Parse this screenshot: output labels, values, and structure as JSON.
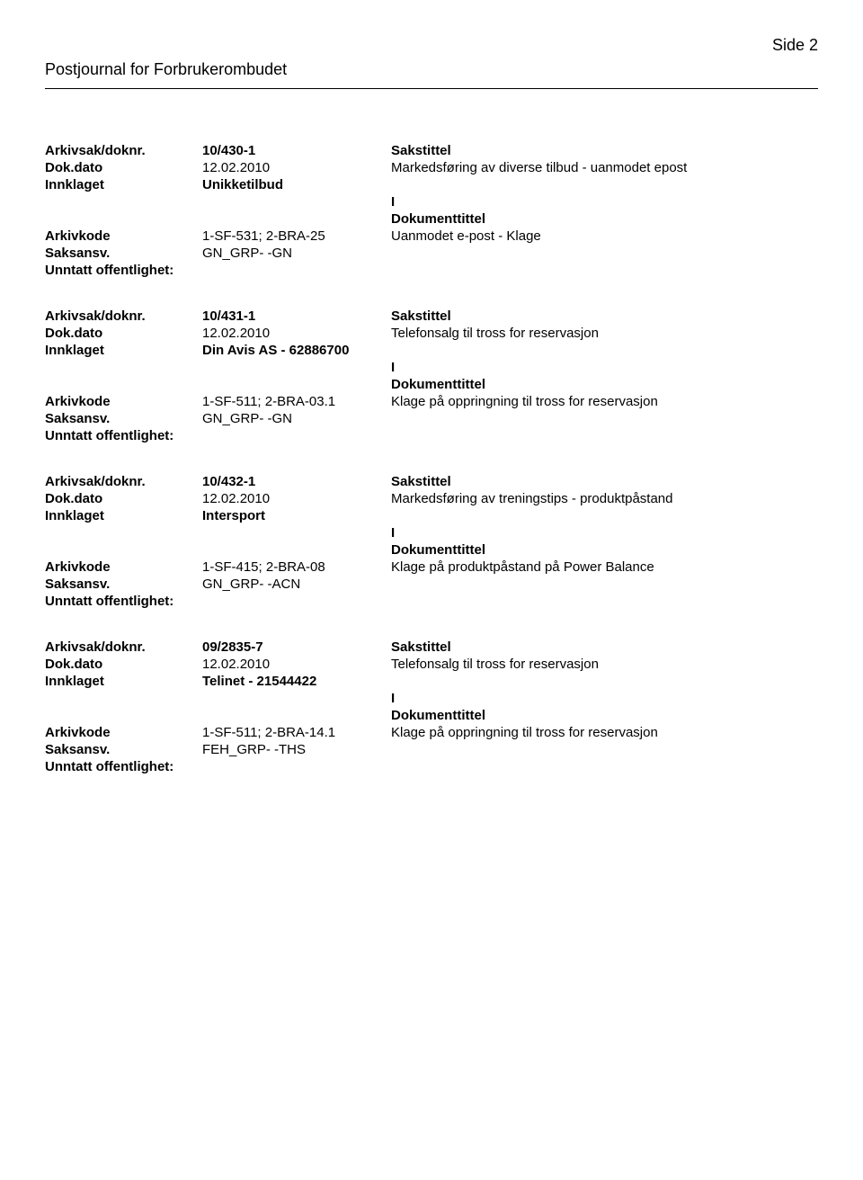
{
  "header": {
    "title": "Postjournal for Forbrukerombudet",
    "page": "Side 2"
  },
  "labels": {
    "arkivsak": "Arkivsak/doknr.",
    "dokdato": "Dok.dato",
    "innklaget": "Innklaget",
    "arkivkode": "Arkivkode",
    "saksansv": "Saksansv.",
    "unntatt": "Unntatt offentlighet:",
    "sakstittel": "Sakstittel",
    "doktittel": "Dokumenttittel"
  },
  "entries": [
    {
      "doknr": "10/430-1",
      "dato": "12.02.2010",
      "innklaget": "Unikketilbud",
      "sakstittel": "Markedsføring av diverse tilbud - uanmodet epost",
      "iou": "I",
      "arkivkode": "1-SF-531; 2-BRA-25",
      "doktittel": "Uanmodet e-post - Klage",
      "saksansv": "GN_GRP- -GN"
    },
    {
      "doknr": "10/431-1",
      "dato": "12.02.2010",
      "innklaget": "Din Avis AS - 62886700",
      "sakstittel": "Telefonsalg til tross for reservasjon",
      "iou": "I",
      "arkivkode": "1-SF-511; 2-BRA-03.1",
      "doktittel": "Klage på oppringning til tross for reservasjon",
      "saksansv": "GN_GRP- -GN"
    },
    {
      "doknr": "10/432-1",
      "dato": "12.02.2010",
      "innklaget": "Intersport",
      "sakstittel": "Markedsføring av treningstips - produktpåstand",
      "iou": "I",
      "arkivkode": "1-SF-415; 2-BRA-08",
      "doktittel": "Klage på produktpåstand på Power Balance",
      "saksansv": "GN_GRP- -ACN"
    },
    {
      "doknr": "09/2835-7",
      "dato": "12.02.2010",
      "innklaget": "Telinet - 21544422",
      "sakstittel": "Telefonsalg til tross for reservasjon",
      "iou": "I",
      "arkivkode": "1-SF-511; 2-BRA-14.1",
      "doktittel": "Klage på oppringning til tross for reservasjon",
      "saksansv": "FEH_GRP- -THS"
    }
  ]
}
